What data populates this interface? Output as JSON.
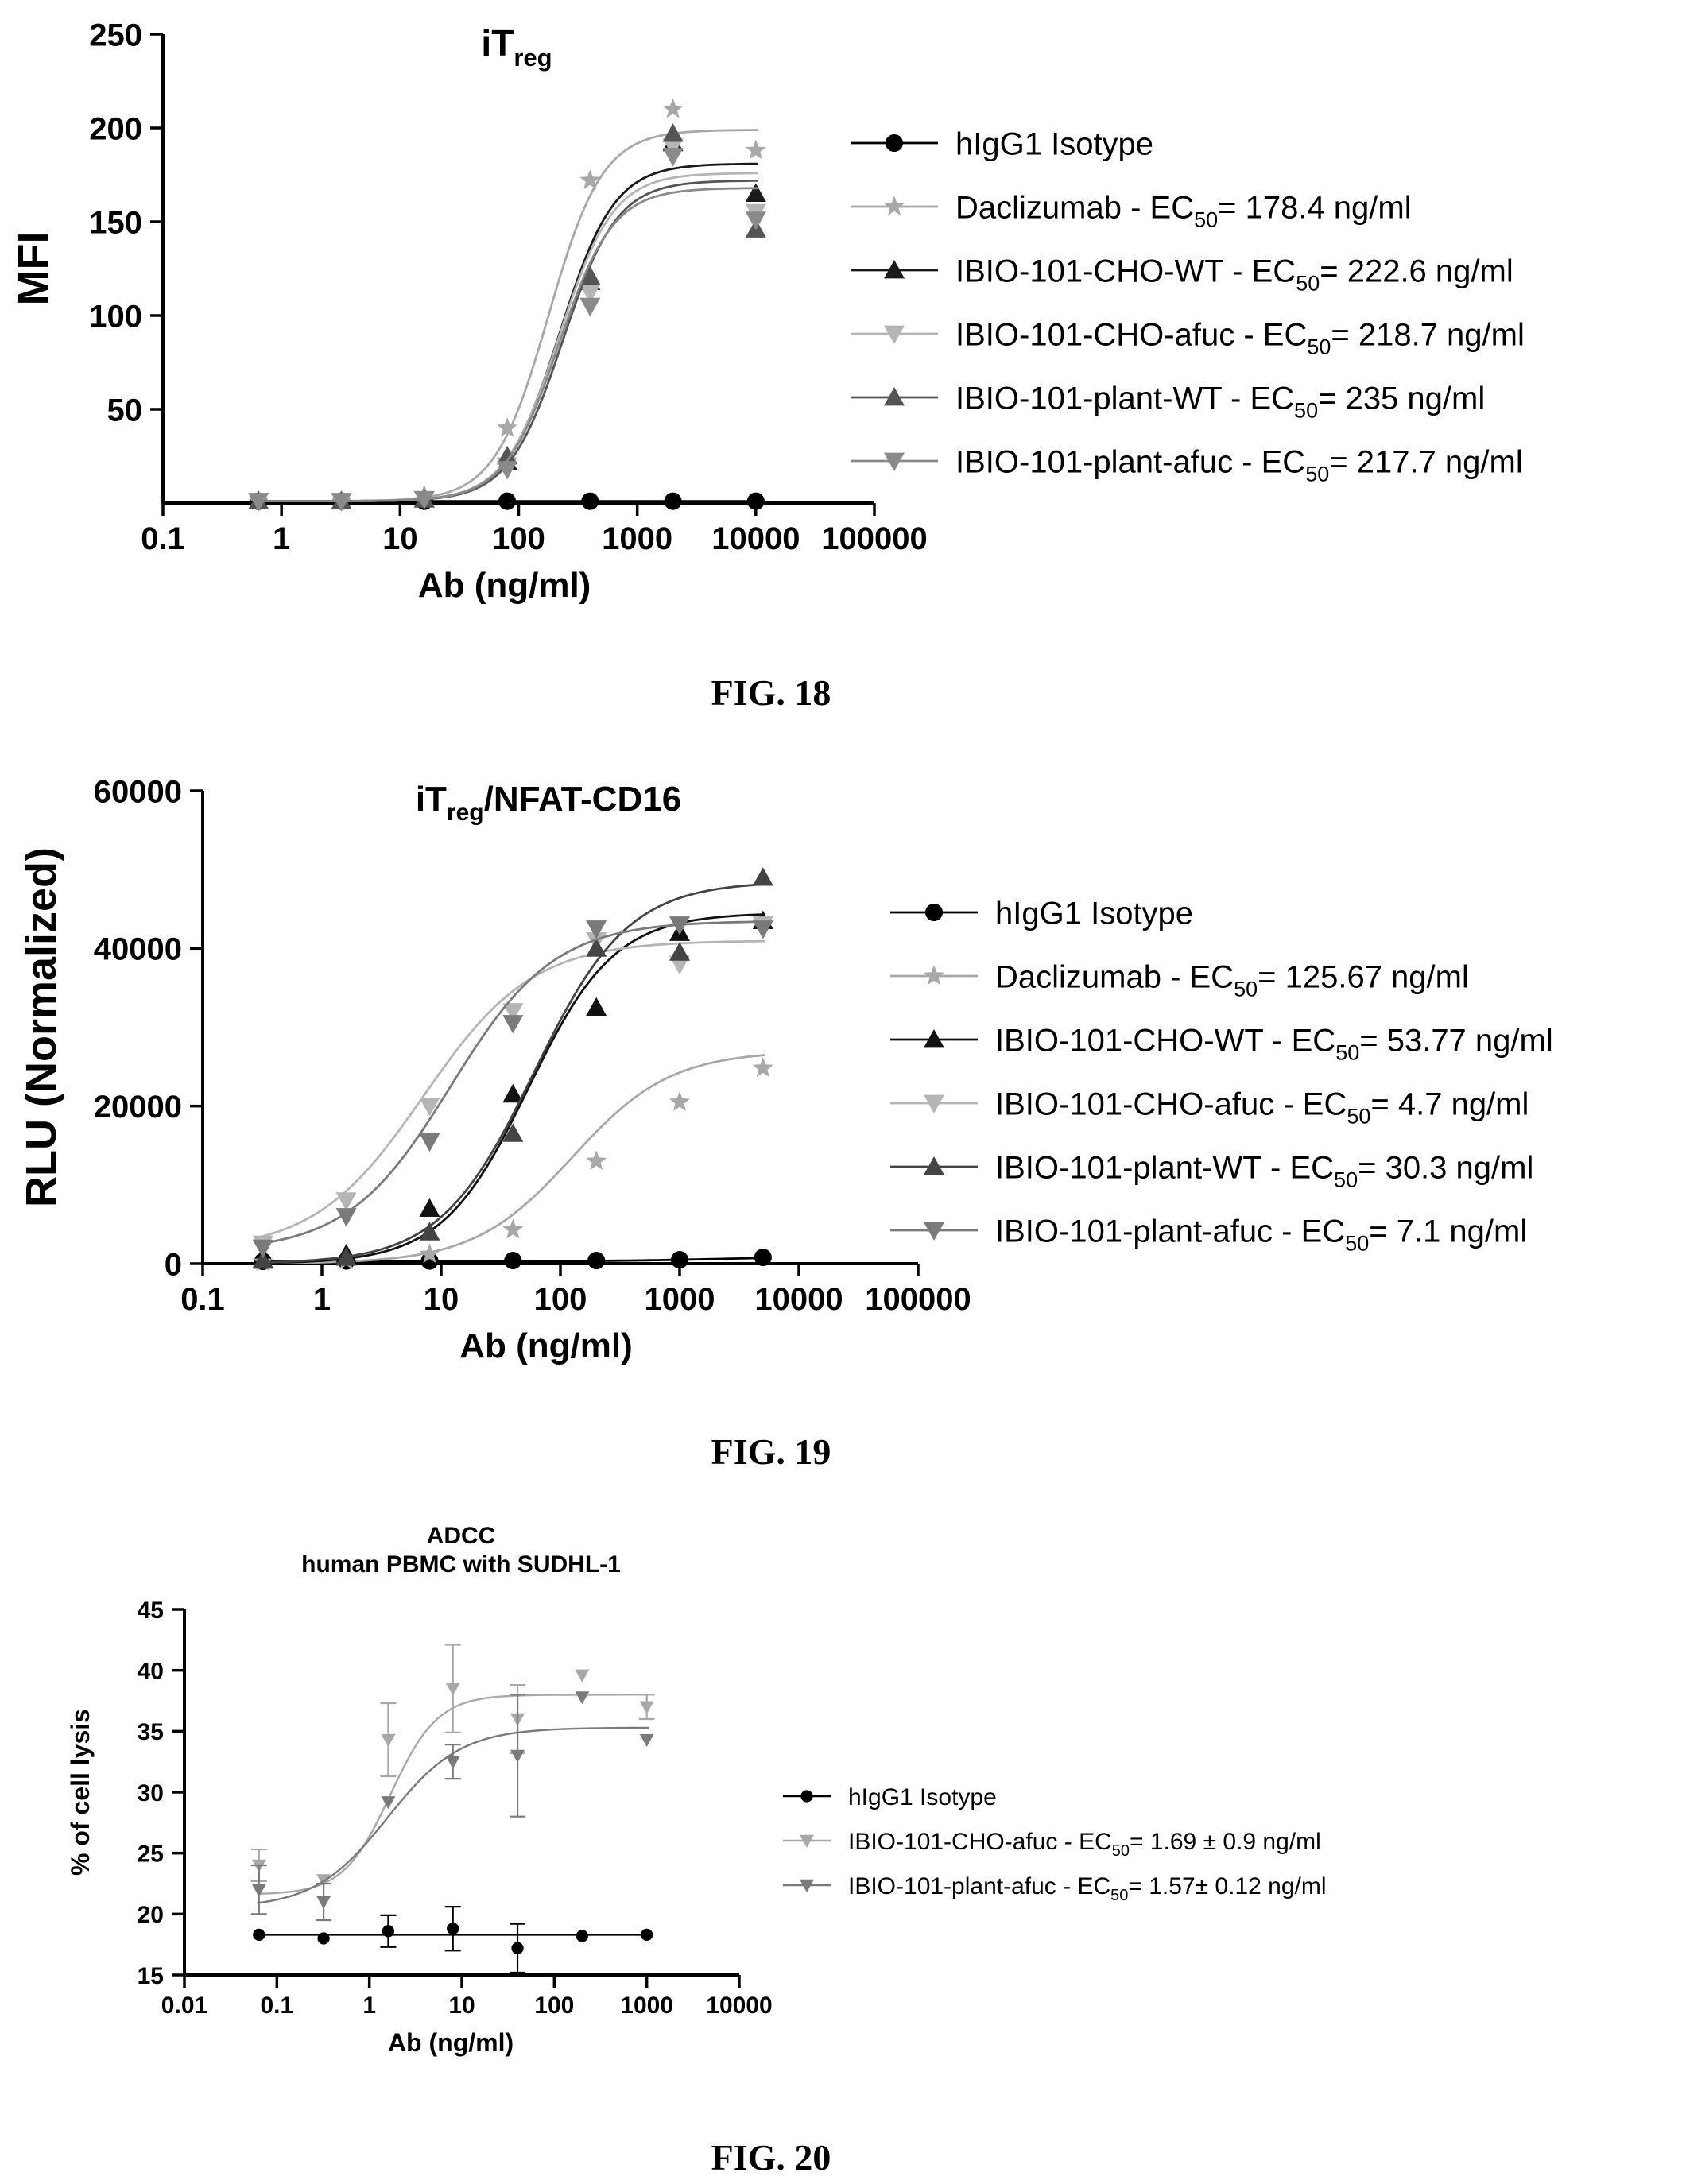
{
  "figures": [
    {
      "caption": "FIG. 18"
    },
    {
      "caption": "FIG. 19"
    },
    {
      "caption": "FIG. 20"
    }
  ],
  "chart_data": [
    {
      "type": "scatter",
      "title": "iT",
      "title_sub": "reg",
      "title_suffix": "",
      "xlabel": "Ab (ng/ml)",
      "ylabel": "MFI",
      "xscale": "log",
      "xlim": [
        0.1,
        100000
      ],
      "ylim": [
        0,
        250
      ],
      "x_ticks": [
        "0.1",
        "1",
        "10",
        "100",
        "1000",
        "10000",
        "100000"
      ],
      "y_ticks": [
        "50",
        "100",
        "150",
        "200",
        "250"
      ],
      "legend_position": "right",
      "series": [
        {
          "name": "hIgG1 Isotype",
          "marker": "circle",
          "color": "#000000",
          "x": [
            0.64,
            3.2,
            16,
            80,
            400,
            2000,
            10000
          ],
          "y": [
            1,
            1,
            1,
            1,
            1,
            1,
            1
          ],
          "fit": {
            "bottom": 1,
            "top": 1,
            "ec50": 100,
            "hill": 1
          }
        },
        {
          "name_main": "Daclizumab - EC",
          "name_sub": "50",
          "name_tail": "= 178.4 ng/ml",
          "marker": "star",
          "color": "#a8a8a8",
          "x": [
            0.64,
            3.2,
            16,
            80,
            400,
            2000,
            10000
          ],
          "y": [
            1,
            1,
            4,
            40,
            172,
            210,
            188
          ],
          "fit": {
            "bottom": 1,
            "top": 199,
            "ec50": 178.4,
            "hill": 1.9
          }
        },
        {
          "name_main": "IBIO-101-CHO-WT - EC",
          "name_sub": "50",
          "name_tail": "= 222.6 ng/ml",
          "marker": "triangle-up",
          "color": "#1a1a1a",
          "x": [
            0.64,
            3.2,
            16,
            80,
            400,
            2000,
            10000
          ],
          "y": [
            1,
            1,
            2,
            22,
            118,
            192,
            165
          ],
          "fit": {
            "bottom": 1,
            "top": 181,
            "ec50": 222.6,
            "hill": 1.9
          }
        },
        {
          "name_main": "IBIO-101-CHO-afuc - EC",
          "name_sub": "50",
          "name_tail": "= 218.7 ng/ml",
          "marker": "triangle-down",
          "color": "#b5b5b5",
          "x": [
            0.64,
            3.2,
            16,
            80,
            400,
            2000,
            10000
          ],
          "y": [
            1,
            1,
            2,
            20,
            112,
            190,
            155
          ],
          "fit": {
            "bottom": 1,
            "top": 176,
            "ec50": 218.7,
            "hill": 1.9
          }
        },
        {
          "name_main": "IBIO-101-plant-WT - EC",
          "name_sub": "50",
          "name_tail": "= 235 ng/ml",
          "marker": "triangle-up",
          "color": "#555555",
          "x": [
            0.64,
            3.2,
            16,
            80,
            400,
            2000,
            10000
          ],
          "y": [
            1,
            1,
            2,
            25,
            121,
            197,
            146
          ],
          "fit": {
            "bottom": 1,
            "top": 172,
            "ec50": 235,
            "hill": 1.9
          }
        },
        {
          "name_main": "IBIO-101-plant-afuc - EC",
          "name_sub": "50",
          "name_tail": "= 217.7 ng/ml",
          "marker": "triangle-down",
          "color": "#8a8a8a",
          "x": [
            0.64,
            3.2,
            16,
            80,
            400,
            2000,
            10000
          ],
          "y": [
            1,
            1,
            2,
            18,
            105,
            185,
            151
          ],
          "fit": {
            "bottom": 1,
            "top": 168,
            "ec50": 217.7,
            "hill": 1.9
          }
        }
      ]
    },
    {
      "type": "scatter",
      "title": "iT",
      "title_sub": "reg",
      "title_suffix": "/NFAT-CD16",
      "xlabel": "Ab (ng/ml)",
      "ylabel": "RLU (Normalized)",
      "xscale": "log",
      "xlim": [
        0.1,
        100000
      ],
      "ylim": [
        0,
        60000
      ],
      "x_ticks": [
        "0.1",
        "1",
        "10",
        "100",
        "1000",
        "10000",
        "100000"
      ],
      "y_ticks": [
        "0",
        "20000",
        "40000",
        "60000"
      ],
      "legend_position": "right",
      "series": [
        {
          "name": "hIgG1 Isotype",
          "marker": "circle",
          "color": "#000000",
          "x": [
            0.32,
            1.6,
            8,
            40,
            200,
            1000,
            5000
          ],
          "y": [
            300,
            350,
            350,
            400,
            400,
            500,
            800
          ],
          "fit": {
            "bottom": 300,
            "top": 900,
            "ec50": 2000,
            "hill": 1
          }
        },
        {
          "name_main": "Daclizumab - EC",
          "name_sub": "50",
          "name_tail": "= 125.67 ng/ml",
          "marker": "star",
          "color": "#a8a8a8",
          "x": [
            0.32,
            1.6,
            8,
            40,
            200,
            1000,
            5000
          ],
          "y": [
            200,
            400,
            1200,
            4300,
            13000,
            20500,
            24800
          ],
          "fit": {
            "bottom": 0,
            "top": 27000,
            "ec50": 125.67,
            "hill": 1.05
          }
        },
        {
          "name_main": "IBIO-101-CHO-WT - EC",
          "name_sub": "50",
          "name_tail": "= 53.77 ng/ml",
          "marker": "triangle-up",
          "color": "#111111",
          "x": [
            0.32,
            1.6,
            8,
            40,
            200,
            1000,
            5000
          ],
          "y": [
            500,
            1200,
            7000,
            21500,
            32500,
            42000,
            43500
          ],
          "fit": {
            "bottom": 0,
            "top": 44500,
            "ec50": 53.77,
            "hill": 1.2
          }
        },
        {
          "name_main": "IBIO-101-CHO-afuc - EC",
          "name_sub": "50",
          "name_tail": "= 4.7 ng/ml",
          "marker": "triangle-down",
          "color": "#b5b5b5",
          "x": [
            0.32,
            1.6,
            8,
            40,
            200,
            1000,
            5000
          ],
          "y": [
            2500,
            8000,
            20000,
            32000,
            41000,
            38000,
            43000
          ],
          "fit": {
            "bottom": 1500,
            "top": 41000,
            "ec50": 7.1,
            "hill": 0.95
          }
        },
        {
          "name_main": "IBIO-101-plant-WT - EC",
          "name_sub": "50",
          "name_tail": "= 30.3 ng/ml",
          "marker": "triangle-up",
          "color": "#444444",
          "x": [
            0.32,
            1.6,
            8,
            40,
            200,
            1000,
            5000
          ],
          "y": [
            400,
            800,
            4000,
            16500,
            40000,
            39500,
            49000
          ],
          "fit": {
            "bottom": 0,
            "top": 48500,
            "ec50": 60,
            "hill": 1.1
          }
        },
        {
          "name_main": "IBIO-101-plant-afuc - EC",
          "name_sub": "50",
          "name_tail": "= 7.1 ng/ml",
          "marker": "triangle-down",
          "color": "#7a7a7a",
          "x": [
            0.32,
            1.6,
            8,
            40,
            200,
            1000,
            5000
          ],
          "y": [
            2000,
            6000,
            15500,
            30500,
            42500,
            43000,
            42500
          ],
          "fit": {
            "bottom": 1500,
            "top": 43500,
            "ec50": 12,
            "hill": 1.0
          }
        }
      ]
    },
    {
      "type": "scatter",
      "title_lines": [
        "ADCC",
        "human PBMC with SUDHL-1"
      ],
      "xlabel": "Ab (ng/ml)",
      "ylabel": "% of cell lysis",
      "xscale": "log",
      "xlim": [
        0.01,
        10000
      ],
      "ylim": [
        15,
        45
      ],
      "x_ticks": [
        "0.01",
        "0.1",
        "1",
        "10",
        "100",
        "1000",
        "10000"
      ],
      "y_ticks": [
        "15",
        "20",
        "25",
        "30",
        "35",
        "40",
        "45"
      ],
      "legend_position": "right",
      "series": [
        {
          "name": "hIgG1 Isotype",
          "marker": "circle",
          "color": "#000000",
          "x": [
            0.064,
            0.32,
            1.6,
            8,
            40,
            200,
            1000
          ],
          "y": [
            18.3,
            18.0,
            18.6,
            18.8,
            17.2,
            18.2,
            18.3
          ],
          "err": [
            0,
            0,
            1.3,
            1.8,
            2.0,
            0,
            0
          ]
        },
        {
          "name_main": "IBIO-101-CHO-afuc - EC",
          "name_sub": "50",
          "name_tail": "= 1.69 ± 0.9 ng/ml",
          "marker": "triangle-down",
          "color": "#a8a8a8",
          "x": [
            0.064,
            0.32,
            1.6,
            8,
            40,
            200,
            1000
          ],
          "y": [
            24.0,
            22.8,
            34.3,
            38.5,
            36.0,
            39.6,
            37.0
          ],
          "err": [
            1.3,
            0,
            3.0,
            3.6,
            2.8,
            0,
            1.0
          ],
          "fit": {
            "bottom": 21.6,
            "top": 38.0,
            "ec50": 1.69,
            "hill": 1.7
          }
        },
        {
          "name_main": "IBIO-101-plant-afuc - EC",
          "name_sub": "50",
          "name_tail": "= 1.57± 0.12 ng/ml",
          "marker": "triangle-down",
          "color": "#7a7a7a",
          "x": [
            0.064,
            0.32,
            1.6,
            8,
            40,
            200,
            1000
          ],
          "y": [
            22.0,
            21.0,
            29.2,
            32.5,
            33.0,
            37.8,
            34.3
          ],
          "err": [
            2.0,
            1.5,
            0,
            1.4,
            5.0,
            0,
            0
          ],
          "fit": {
            "bottom": 20.5,
            "top": 35.3,
            "ec50": 1.57,
            "hill": 1.1
          }
        }
      ]
    }
  ]
}
